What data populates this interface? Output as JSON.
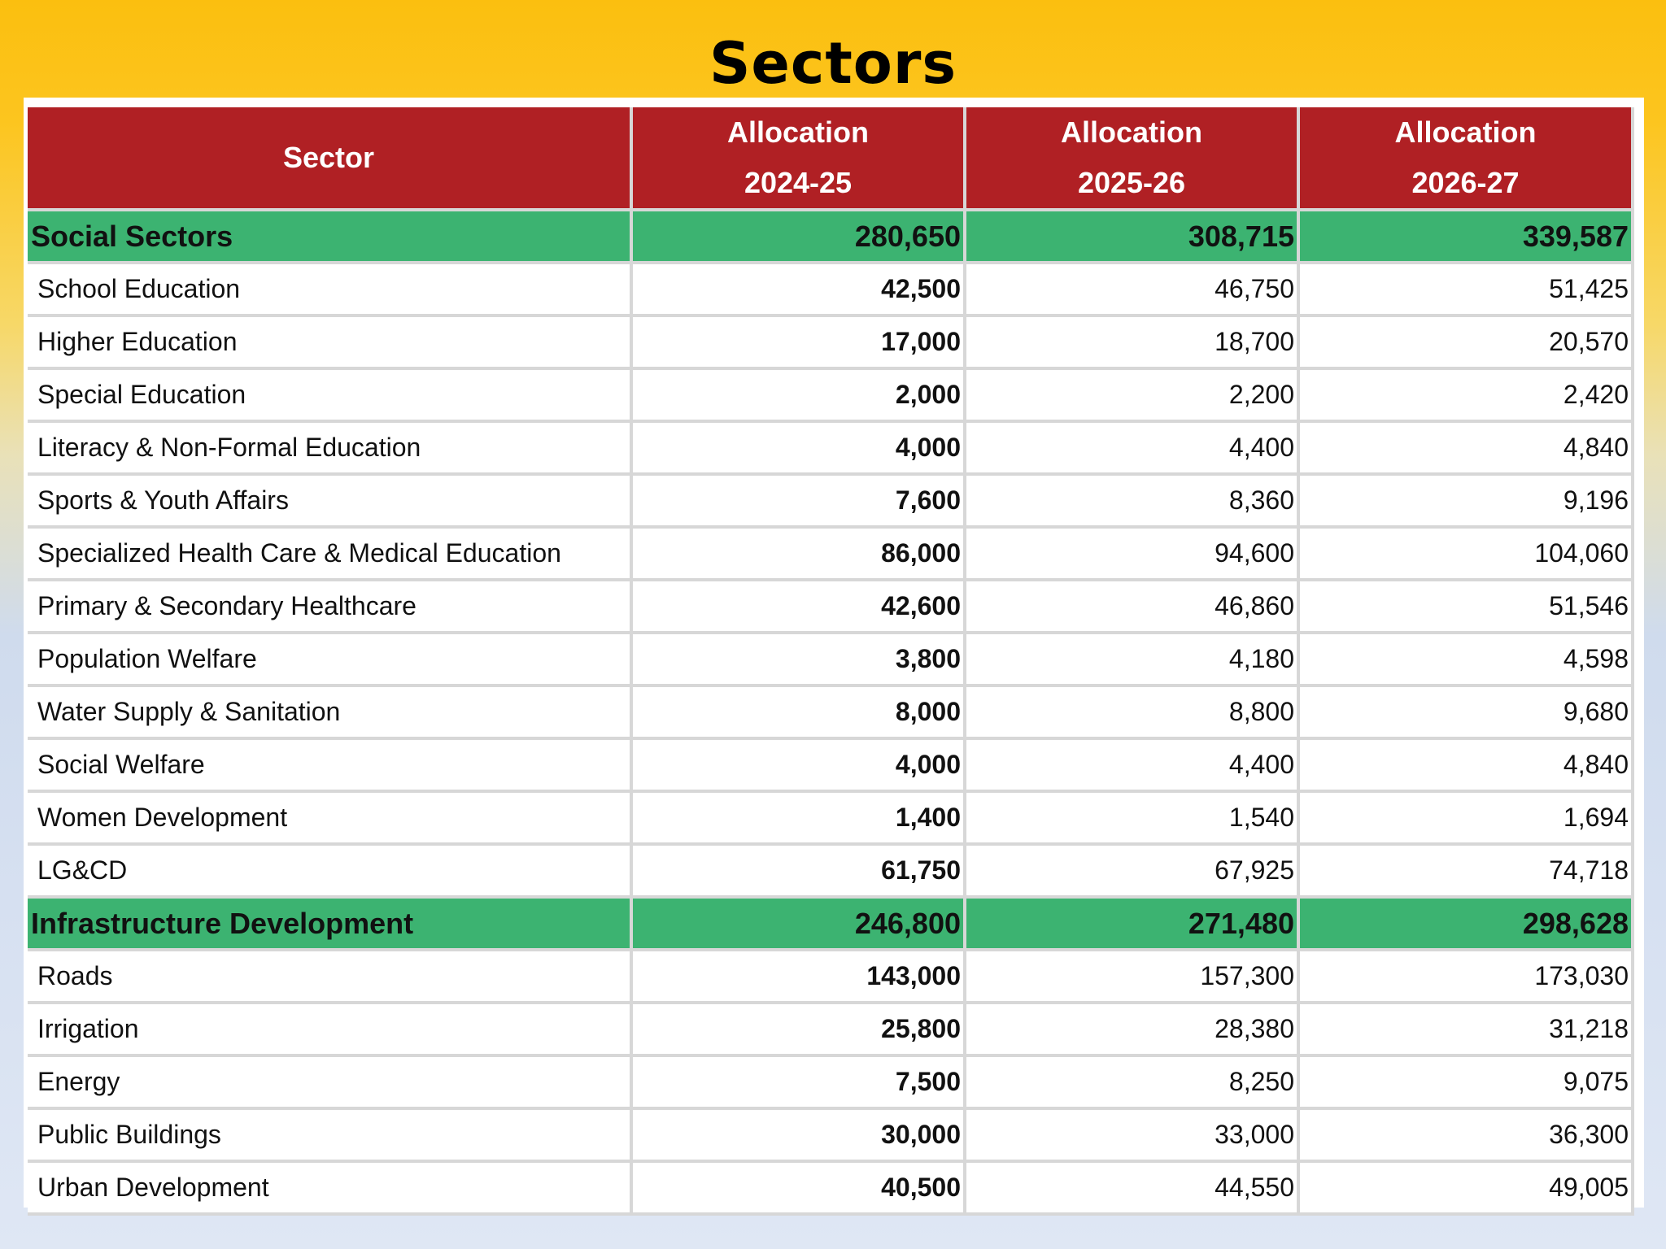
{
  "title": "Sectors",
  "table": {
    "headers": [
      {
        "line1": "Sector",
        "line2": ""
      },
      {
        "line1": "Allocation",
        "line2": "2024-25"
      },
      {
        "line1": "Allocation",
        "line2": "2025-26"
      },
      {
        "line1": "Allocation",
        "line2": "2026-27"
      }
    ],
    "rows": [
      {
        "type": "group",
        "sector": "Social Sectors",
        "y2024": "280,650",
        "y2025": "308,715",
        "y2026": "339,587"
      },
      {
        "type": "item",
        "sector": "School Education",
        "y2024": "42,500",
        "y2025": "46,750",
        "y2026": "51,425"
      },
      {
        "type": "item",
        "sector": "Higher Education",
        "y2024": "17,000",
        "y2025": "18,700",
        "y2026": "20,570"
      },
      {
        "type": "item",
        "sector": "Special Education",
        "y2024": "2,000",
        "y2025": "2,200",
        "y2026": "2,420"
      },
      {
        "type": "item",
        "sector": "Literacy & Non-Formal Education",
        "y2024": "4,000",
        "y2025": "4,400",
        "y2026": "4,840"
      },
      {
        "type": "item",
        "sector": "Sports & Youth Affairs",
        "y2024": "7,600",
        "y2025": "8,360",
        "y2026": "9,196"
      },
      {
        "type": "item",
        "sector": "Specialized Health Care & Medical Education",
        "y2024": "86,000",
        "y2025": "94,600",
        "y2026": "104,060"
      },
      {
        "type": "item",
        "sector": "Primary & Secondary Healthcare",
        "y2024": "42,600",
        "y2025": "46,860",
        "y2026": "51,546"
      },
      {
        "type": "item",
        "sector": "Population Welfare",
        "y2024": "3,800",
        "y2025": "4,180",
        "y2026": "4,598"
      },
      {
        "type": "item",
        "sector": "Water Supply & Sanitation",
        "y2024": "8,000",
        "y2025": "8,800",
        "y2026": "9,680"
      },
      {
        "type": "item",
        "sector": "Social Welfare",
        "y2024": "4,000",
        "y2025": "4,400",
        "y2026": "4,840"
      },
      {
        "type": "item",
        "sector": "Women Development",
        "y2024": "1,400",
        "y2025": "1,540",
        "y2026": "1,694"
      },
      {
        "type": "item",
        "sector": "LG&CD",
        "y2024": "61,750",
        "y2025": "67,925",
        "y2026": "74,718"
      },
      {
        "type": "group",
        "sector": "Infrastructure Development",
        "y2024": "246,800",
        "y2025": "271,480",
        "y2026": "298,628"
      },
      {
        "type": "item",
        "sector": "Roads",
        "y2024": "143,000",
        "y2025": "157,300",
        "y2026": "173,030"
      },
      {
        "type": "item",
        "sector": "Irrigation",
        "y2024": "25,800",
        "y2025": "28,380",
        "y2026": "31,218"
      },
      {
        "type": "item",
        "sector": "Energy",
        "y2024": "7,500",
        "y2025": "8,250",
        "y2026": "9,075"
      },
      {
        "type": "item",
        "sector": "Public Buildings",
        "y2024": "30,000",
        "y2025": "33,000",
        "y2026": "36,300"
      },
      {
        "type": "item",
        "sector": "Urban Development",
        "y2024": "40,500",
        "y2025": "44,550",
        "y2026": "49,005"
      }
    ]
  },
  "colors": {
    "header_bg": "#b02024",
    "group_bg": "#3cb371",
    "grid": "#d7d7d7",
    "background_top": "#fbbf0f",
    "background_bottom": "#dfe7f4"
  }
}
